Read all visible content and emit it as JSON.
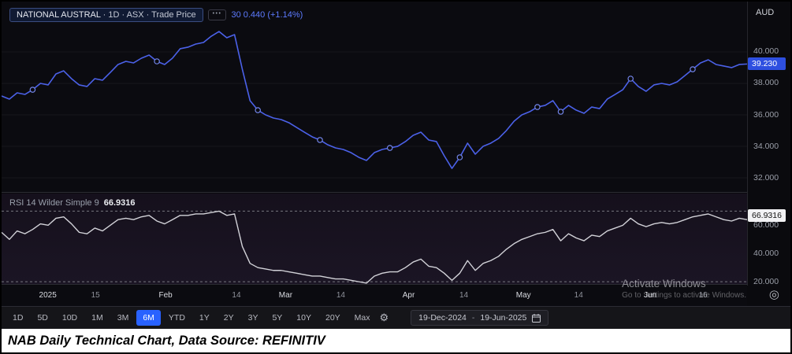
{
  "header": {
    "instrument": "NATIONAL AUSTRAL",
    "params": " · 1D · ASX · Trade Price",
    "menu_dots": "•••",
    "quote": "30  0.440 (+1.14%)",
    "currency": "AUD"
  },
  "price_badge": "39.230",
  "rsi": {
    "label": "RSI 14 Wilder Simple 9",
    "value": "66.9316"
  },
  "x_axis": {
    "target_icon": "◎",
    "labels": [
      {
        "label": "2025",
        "pos": 0.062,
        "major": true
      },
      {
        "label": "15",
        "pos": 0.126,
        "major": false
      },
      {
        "label": "Feb",
        "pos": 0.22,
        "major": true
      },
      {
        "label": "14",
        "pos": 0.315,
        "major": false
      },
      {
        "label": "Mar",
        "pos": 0.381,
        "major": true
      },
      {
        "label": "14",
        "pos": 0.455,
        "major": false
      },
      {
        "label": "Apr",
        "pos": 0.546,
        "major": true
      },
      {
        "label": "14",
        "pos": 0.62,
        "major": false
      },
      {
        "label": "May",
        "pos": 0.7,
        "major": true
      },
      {
        "label": "14",
        "pos": 0.774,
        "major": false
      },
      {
        "label": "Jun",
        "pos": 0.87,
        "major": true
      },
      {
        "label": "16",
        "pos": 0.941,
        "major": false
      }
    ]
  },
  "toolbar": {
    "ranges": [
      "1D",
      "5D",
      "10D",
      "1M",
      "3M",
      "6M",
      "YTD",
      "1Y",
      "2Y",
      "3Y",
      "5Y",
      "10Y",
      "20Y",
      "Max"
    ],
    "selected": "6M",
    "gear_icon": "⚙",
    "date_from": "19-Dec-2024",
    "date_sep": "-",
    "date_to": "19-Jun-2025"
  },
  "watermark": {
    "line1": "Activate Windows",
    "line2": "Go to Settings to activate Windows."
  },
  "caption": "NAB Daily Technical Chart, Data Source: REFINITIV",
  "colors": {
    "price_line": "#4b61e8",
    "price_marker_stroke": "#7284e8",
    "rsi_line": "#d2d2d8",
    "band_line": "#77777f",
    "grid_line": "#17171d",
    "accent_blue": "#2962ff",
    "price_badge_bg": "#2e4fe0"
  },
  "chart_data": [
    {
      "type": "line",
      "name": "price",
      "title": "NATIONAL AUSTRAL · 1D · ASX · Trade Price (AUD)",
      "x_range": [
        "19-Dec-2024",
        "19-Jun-2025"
      ],
      "ylim": [
        31.1,
        43.2
      ],
      "yticks": [
        40,
        38,
        36,
        34,
        32
      ],
      "ytick_labels": [
        "40.000",
        "38.000",
        "36.000",
        "34.000",
        "32.000"
      ],
      "last_value": 39.23,
      "last_label": "39.230",
      "change": "+0.440 (+1.14%)",
      "marker_indices": [
        4,
        20,
        33,
        41,
        50,
        59,
        69,
        72,
        81,
        89
      ],
      "values": [
        37.2,
        37.0,
        37.4,
        37.3,
        37.6,
        38.0,
        37.9,
        38.6,
        38.8,
        38.3,
        37.9,
        37.8,
        38.3,
        38.2,
        38.7,
        39.2,
        39.4,
        39.3,
        39.6,
        39.8,
        39.4,
        39.2,
        39.6,
        40.2,
        40.3,
        40.5,
        40.6,
        41.0,
        41.3,
        40.9,
        41.1,
        38.9,
        36.9,
        36.3,
        36.0,
        35.8,
        35.7,
        35.5,
        35.2,
        34.9,
        34.6,
        34.4,
        34.1,
        33.9,
        33.8,
        33.6,
        33.3,
        33.1,
        33.6,
        33.8,
        33.9,
        34.0,
        34.3,
        34.7,
        34.9,
        34.4,
        34.3,
        33.4,
        32.6,
        33.3,
        34.2,
        33.5,
        34.0,
        34.2,
        34.5,
        35.0,
        35.6,
        36.0,
        36.2,
        36.5,
        36.6,
        36.9,
        36.2,
        36.6,
        36.3,
        36.1,
        36.5,
        36.4,
        37.0,
        37.3,
        37.6,
        38.3,
        37.8,
        37.5,
        37.9,
        38.0,
        37.9,
        38.1,
        38.5,
        38.9,
        39.3,
        39.5,
        39.2,
        39.1,
        39.0,
        39.2,
        39.23
      ]
    },
    {
      "type": "line",
      "name": "rsi",
      "title": "RSI 14 Wilder Simple 9",
      "ylim": [
        18.4,
        82.5
      ],
      "yticks": [
        60,
        40,
        20
      ],
      "ytick_labels": [
        "60.000",
        "40.000",
        "20.000"
      ],
      "bands": [
        70,
        20
      ],
      "last_level": 66.9316,
      "last_label": "66.9316",
      "values": [
        55,
        50,
        56,
        54,
        57,
        61,
        60,
        65,
        66,
        61,
        55,
        54,
        58,
        56,
        60,
        64,
        65,
        64,
        66,
        67,
        63,
        61,
        64,
        67,
        67,
        68,
        68,
        69,
        70,
        67,
        68,
        45,
        33,
        30,
        29,
        28,
        28,
        27,
        26,
        25,
        24,
        24,
        23,
        22,
        22,
        21,
        20,
        19,
        24,
        26,
        27,
        27,
        30,
        34,
        36,
        31,
        30,
        26,
        21,
        26,
        35,
        28,
        33,
        35,
        38,
        43,
        47,
        50,
        52,
        54,
        55,
        57,
        49,
        54,
        51,
        49,
        53,
        52,
        56,
        58,
        60,
        65,
        61,
        59,
        61,
        62,
        61,
        62,
        64,
        66,
        67,
        68,
        66,
        64,
        63,
        65,
        64
      ]
    }
  ]
}
